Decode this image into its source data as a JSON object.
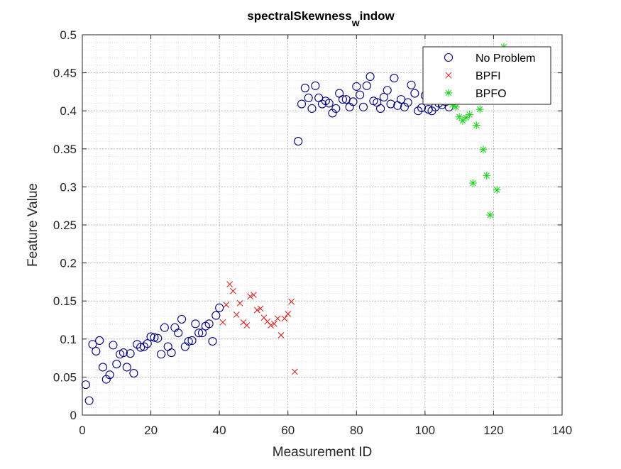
{
  "chart_data": {
    "type": "scatter",
    "title_main": "spectralSkewness",
    "title_sub": "w",
    "title_tail": "indow",
    "xlabel": "Measurement ID",
    "ylabel": "Feature Value",
    "xlim": [
      0,
      140
    ],
    "ylim": [
      0,
      0.5
    ],
    "xticks": [
      0,
      20,
      40,
      60,
      80,
      100,
      120,
      140
    ],
    "yticks": [
      0,
      0.05,
      0.1,
      0.15,
      0.2,
      0.25,
      0.3,
      0.35,
      0.4,
      0.45,
      0.5
    ],
    "xtick_labels": [
      "0",
      "20",
      "40",
      "60",
      "80",
      "100",
      "120",
      "140"
    ],
    "ytick_labels": [
      "0",
      "0.05",
      "0.1",
      "0.15",
      "0.2",
      "0.25",
      "0.3",
      "0.35",
      "0.4",
      "0.45",
      "0.5"
    ],
    "grid": "on (major and minor, dotted)",
    "legend_position": "top-right",
    "series": [
      {
        "name": "No Problem",
        "marker": "circle",
        "color": "#00007f",
        "x": [
          1,
          2,
          3,
          4,
          5,
          6,
          7,
          8,
          9,
          10,
          11,
          12,
          13,
          14,
          15,
          16,
          17,
          18,
          19,
          20,
          21,
          22,
          23,
          24,
          25,
          26,
          27,
          28,
          29,
          30,
          31,
          32,
          33,
          34,
          35,
          36,
          37,
          38,
          39,
          40,
          63,
          64,
          65,
          66,
          67,
          68,
          69,
          70,
          71,
          72,
          73,
          74,
          75,
          76,
          77,
          78,
          79,
          80,
          81,
          82,
          83,
          84,
          85,
          86,
          87,
          88,
          89,
          90,
          91,
          92,
          93,
          94,
          95,
          96,
          97,
          98,
          99,
          100,
          101,
          102,
          103,
          104,
          105,
          106,
          107
        ],
        "y": [
          0.04,
          0.019,
          0.093,
          0.084,
          0.098,
          0.063,
          0.047,
          0.053,
          0.092,
          0.067,
          0.08,
          0.082,
          0.063,
          0.081,
          0.055,
          0.093,
          0.089,
          0.09,
          0.094,
          0.103,
          0.102,
          0.101,
          0.08,
          0.115,
          0.09,
          0.082,
          0.115,
          0.108,
          0.126,
          0.09,
          0.097,
          0.098,
          0.12,
          0.108,
          0.108,
          0.117,
          0.12,
          0.097,
          0.131,
          0.141,
          0.36,
          0.409,
          0.43,
          0.417,
          0.403,
          0.433,
          0.417,
          0.409,
          0.413,
          0.41,
          0.397,
          0.403,
          0.423,
          0.415,
          0.415,
          0.405,
          0.412,
          0.432,
          0.421,
          0.405,
          0.433,
          0.445,
          0.413,
          0.411,
          0.403,
          0.418,
          0.427,
          0.409,
          0.443,
          0.407,
          0.415,
          0.405,
          0.411,
          0.434,
          0.423,
          0.4,
          0.404,
          0.42,
          0.402,
          0.4,
          0.405,
          0.41,
          0.408,
          0.412,
          0.405
        ]
      },
      {
        "name": "BPFI",
        "marker": "x",
        "color": "#d62828",
        "x": [
          41,
          42,
          43,
          44,
          45,
          46,
          47,
          48,
          49,
          50,
          51,
          52,
          53,
          54,
          55,
          56,
          57,
          58,
          59,
          60,
          61,
          62
        ],
        "y": [
          0.122,
          0.145,
          0.172,
          0.163,
          0.132,
          0.147,
          0.122,
          0.118,
          0.156,
          0.158,
          0.138,
          0.14,
          0.128,
          0.123,
          0.118,
          0.12,
          0.127,
          0.105,
          0.127,
          0.133,
          0.149,
          0.057
        ]
      },
      {
        "name": "BPFO",
        "marker": "asterisk",
        "color": "#22d322",
        "x": [
          108,
          109,
          110,
          111,
          112,
          113,
          114,
          115,
          116,
          117,
          118,
          119,
          120,
          121,
          123
        ],
        "y": [
          0.408,
          0.405,
          0.392,
          0.387,
          0.391,
          0.395,
          0.305,
          0.381,
          0.402,
          0.349,
          0.315,
          0.263,
          0.42,
          0.296,
          0.484
        ]
      }
    ]
  }
}
